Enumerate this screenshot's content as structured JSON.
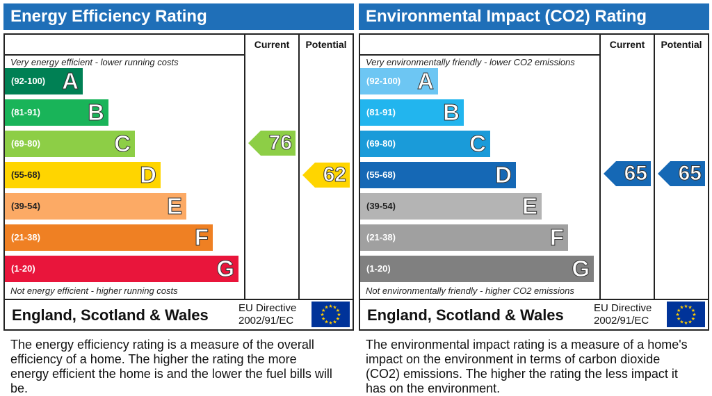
{
  "chart_data": [
    {
      "type": "bar",
      "title": "Energy Efficiency Rating",
      "columns": [
        "Current",
        "Potential"
      ],
      "top_note": "Very energy efficient - lower running costs",
      "bottom_note": "Not energy efficient - higher running costs",
      "bands": [
        {
          "range": "(92-100)",
          "letter": "A",
          "color": "#008054",
          "max": 100
        },
        {
          "range": "(81-91)",
          "letter": "B",
          "color": "#19b459",
          "max": 91
        },
        {
          "range": "(69-80)",
          "letter": "C",
          "color": "#8dce46",
          "max": 80
        },
        {
          "range": "(55-68)",
          "letter": "D",
          "color": "#ffd500",
          "max": 68
        },
        {
          "range": "(39-54)",
          "letter": "E",
          "color": "#fcaa65",
          "max": 54
        },
        {
          "range": "(21-38)",
          "letter": "F",
          "color": "#ef8023",
          "max": 38
        },
        {
          "range": "(1-20)",
          "letter": "G",
          "color": "#e9153b",
          "max": 20
        }
      ],
      "current": 76,
      "potential": 62,
      "current_color": "#8dce46",
      "potential_color": "#ffd500",
      "footer_country": "England, Scotland & Wales",
      "footer_directive": [
        "EU Directive",
        "2002/91/EC"
      ],
      "description": "The energy efficiency rating is a measure of the overall efficiency of a home. The higher the rating the more energy efficient the home is and the lower the fuel bills will be."
    },
    {
      "type": "bar",
      "title": "Environmental Impact (CO2) Rating",
      "columns": [
        "Current",
        "Potential"
      ],
      "top_note": "Very environmentally friendly - lower CO2 emissions",
      "bottom_note": "Not environmentally friendly - higher CO2 emissions",
      "bands": [
        {
          "range": "(92-100)",
          "letter": "A",
          "color": "#6dc6f3",
          "max": 100
        },
        {
          "range": "(81-91)",
          "letter": "B",
          "color": "#22b5ee",
          "max": 91
        },
        {
          "range": "(69-80)",
          "letter": "C",
          "color": "#1a9bd9",
          "max": 80
        },
        {
          "range": "(55-68)",
          "letter": "D",
          "color": "#1568b5",
          "max": 68
        },
        {
          "range": "(39-54)",
          "letter": "E",
          "color": "#b4b4b4",
          "max": 54
        },
        {
          "range": "(21-38)",
          "letter": "F",
          "color": "#a0a0a0",
          "max": 38
        },
        {
          "range": "(1-20)",
          "letter": "G",
          "color": "#808080",
          "max": 20
        }
      ],
      "current": 65,
      "potential": 65,
      "current_color": "#1568b5",
      "potential_color": "#1568b5",
      "footer_country": "England, Scotland & Wales",
      "footer_directive": [
        "EU Directive",
        "2002/91/EC"
      ],
      "description": "The environmental impact rating is a measure of a home's impact on the environment in terms of carbon dioxide (CO2) emissions. The higher the rating the less impact it has on the environment."
    }
  ],
  "eu_flag": {
    "background": "#003399",
    "stars": "#ffcc00",
    "icon": "eu-flag-icon"
  }
}
